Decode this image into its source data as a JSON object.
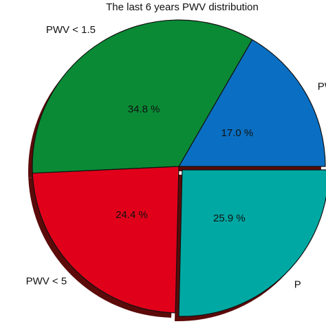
{
  "chart_data": {
    "type": "pie",
    "title": "The last 6 years PWV distribution",
    "slices": [
      {
        "label": "PWV",
        "value": 17.0,
        "percent_label": "17.0 %",
        "color": "#0a6fc2",
        "exploded": false
      },
      {
        "label": "PWV < 1.5",
        "value": 34.8,
        "percent_label": "34.8 %",
        "color": "#0a8a35",
        "exploded": false
      },
      {
        "label": "PWV < 5",
        "value": 24.4,
        "percent_label": "24.4 %",
        "color": "#e0001a",
        "exploded": false
      },
      {
        "label": "P",
        "value": 25.9,
        "percent_label": "25.9 %",
        "color": "#00a8a3",
        "exploded": true
      }
    ],
    "shadow_color": "#5c0a0a",
    "legend": "none",
    "grid": false
  }
}
